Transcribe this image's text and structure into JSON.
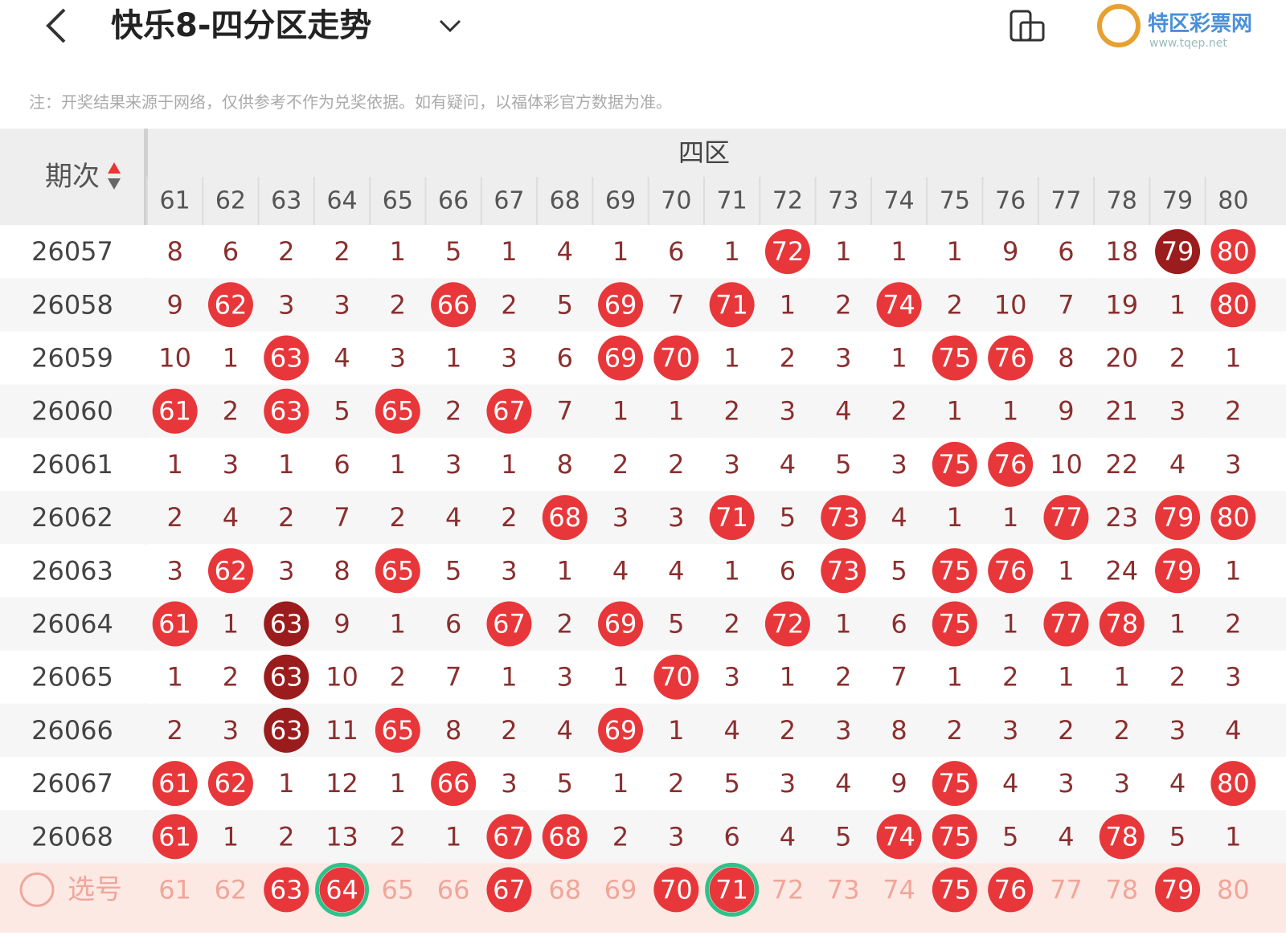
{
  "header": {
    "title": "快乐8-四分区走势",
    "brand": "特区彩票网",
    "brand_url": "www.tqep.net"
  },
  "note": "注：开奖结果来源于网络，仅供参考不作为兑奖依据。如有疑问，以福体彩官方数据为准。",
  "table": {
    "issue_label": "期次",
    "group_label": "四区",
    "select_label": "选号",
    "hit_color": "#e8373a",
    "repeat_color": "#9b1c1c",
    "ring_color": "#2ec28a",
    "columns": [
      "61",
      "62",
      "63",
      "64",
      "65",
      "66",
      "67",
      "68",
      "69",
      "70",
      "71",
      "72",
      "73",
      "74",
      "75",
      "76",
      "77",
      "78",
      "79",
      "80"
    ],
    "rows": [
      {
        "issue": "26057",
        "cells": [
          "8",
          "6",
          "2",
          "2",
          "1",
          "5",
          "1",
          "4",
          "1",
          "6",
          "1",
          "72",
          "1",
          "1",
          "1",
          "9",
          "6",
          "18",
          "79",
          "80"
        ],
        "repeat": [
          18
        ]
      },
      {
        "issue": "26058",
        "cells": [
          "9",
          "62",
          "3",
          "3",
          "2",
          "66",
          "2",
          "5",
          "69",
          "7",
          "71",
          "1",
          "2",
          "74",
          "2",
          "10",
          "7",
          "19",
          "1",
          "80"
        ]
      },
      {
        "issue": "26059",
        "cells": [
          "10",
          "1",
          "63",
          "4",
          "3",
          "1",
          "3",
          "6",
          "69",
          "70",
          "1",
          "2",
          "3",
          "1",
          "75",
          "76",
          "8",
          "20",
          "2",
          "1"
        ]
      },
      {
        "issue": "26060",
        "cells": [
          "61",
          "2",
          "63",
          "5",
          "65",
          "2",
          "67",
          "7",
          "1",
          "1",
          "2",
          "3",
          "4",
          "2",
          "1",
          "1",
          "9",
          "21",
          "3",
          "2"
        ]
      },
      {
        "issue": "26061",
        "cells": [
          "1",
          "3",
          "1",
          "6",
          "1",
          "3",
          "1",
          "8",
          "2",
          "2",
          "3",
          "4",
          "5",
          "3",
          "75",
          "76",
          "10",
          "22",
          "4",
          "3"
        ]
      },
      {
        "issue": "26062",
        "cells": [
          "2",
          "4",
          "2",
          "7",
          "2",
          "4",
          "2",
          "68",
          "3",
          "3",
          "71",
          "5",
          "73",
          "4",
          "1",
          "1",
          "77",
          "23",
          "79",
          "80"
        ]
      },
      {
        "issue": "26063",
        "cells": [
          "3",
          "62",
          "3",
          "8",
          "65",
          "5",
          "3",
          "1",
          "4",
          "4",
          "1",
          "6",
          "73",
          "5",
          "75",
          "76",
          "1",
          "24",
          "79",
          "1"
        ]
      },
      {
        "issue": "26064",
        "cells": [
          "61",
          "1",
          "63",
          "9",
          "1",
          "6",
          "67",
          "2",
          "69",
          "5",
          "2",
          "72",
          "1",
          "6",
          "75",
          "1",
          "77",
          "78",
          "1",
          "2"
        ],
        "repeat": [
          2
        ]
      },
      {
        "issue": "26065",
        "cells": [
          "1",
          "2",
          "63",
          "10",
          "2",
          "7",
          "1",
          "3",
          "1",
          "70",
          "3",
          "1",
          "2",
          "7",
          "1",
          "2",
          "1",
          "1",
          "2",
          "3"
        ],
        "repeat": [
          2
        ]
      },
      {
        "issue": "26066",
        "cells": [
          "2",
          "3",
          "63",
          "11",
          "65",
          "8",
          "2",
          "4",
          "69",
          "1",
          "4",
          "2",
          "3",
          "8",
          "2",
          "3",
          "2",
          "2",
          "3",
          "4"
        ],
        "repeat": [
          2
        ]
      },
      {
        "issue": "26067",
        "cells": [
          "61",
          "62",
          "1",
          "12",
          "1",
          "66",
          "3",
          "5",
          "1",
          "2",
          "5",
          "3",
          "4",
          "9",
          "75",
          "4",
          "3",
          "3",
          "4",
          "80"
        ]
      },
      {
        "issue": "26068",
        "cells": [
          "61",
          "1",
          "2",
          "13",
          "2",
          "1",
          "67",
          "68",
          "2",
          "3",
          "6",
          "4",
          "5",
          "74",
          "75",
          "5",
          "4",
          "78",
          "5",
          "1"
        ]
      }
    ],
    "selected": [
      2,
      3,
      6,
      9,
      10,
      14,
      15,
      18
    ],
    "ringed": [
      3,
      10
    ]
  }
}
